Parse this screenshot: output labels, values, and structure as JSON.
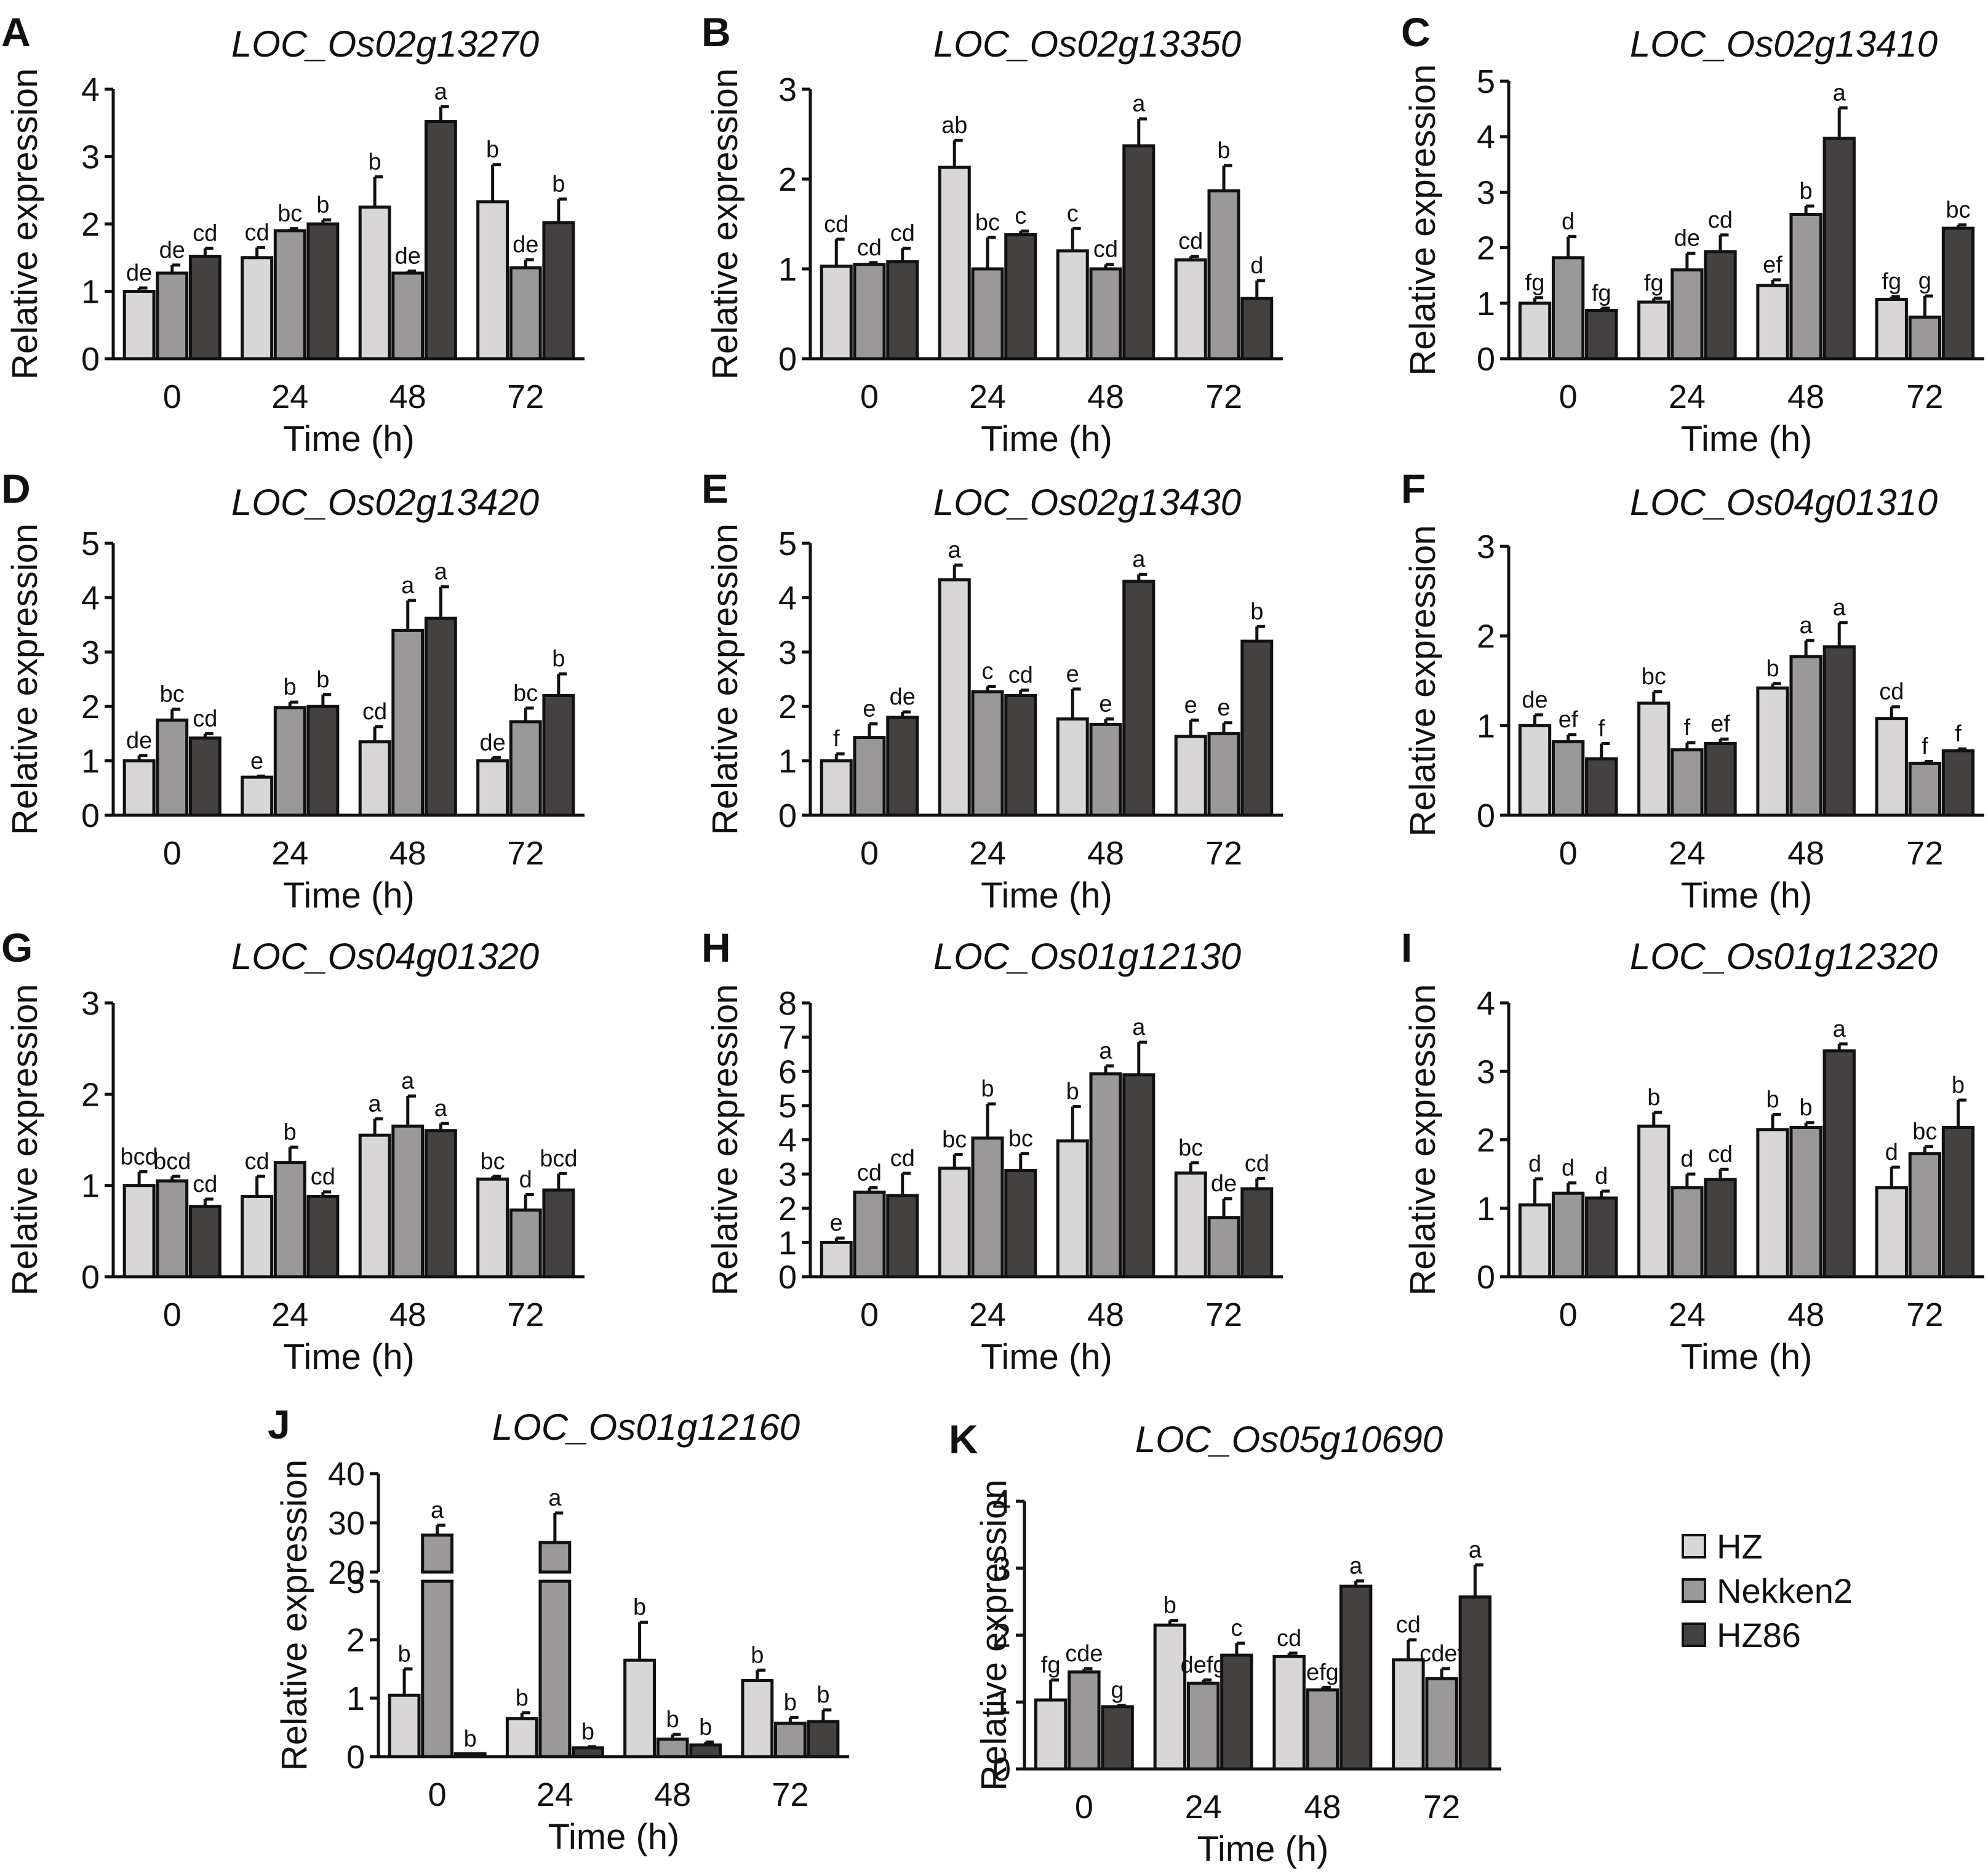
{
  "legend": [
    {
      "name": "HZ",
      "color": "#d9d6d7"
    },
    {
      "name": "Nekken2",
      "color": "#9a9898"
    },
    {
      "name": "HZ86",
      "color": "#454141"
    }
  ],
  "chart_data": [
    {
      "panel": "A",
      "type": "bar",
      "title": "LOC_Os02g13270",
      "xlabel": "Time (h)",
      "ylabel": "Relative expression",
      "categories": [
        "0",
        "24",
        "48",
        "72"
      ],
      "ylim": [
        0,
        4
      ],
      "yticks": [
        0,
        1,
        2,
        3,
        4
      ],
      "series": [
        {
          "name": "HZ",
          "values": [
            1.0,
            1.5,
            2.25,
            2.33
          ],
          "errors": [
            0.05,
            0.15,
            0.45,
            0.55
          ],
          "labels": [
            "de",
            "cd",
            "b",
            "b"
          ]
        },
        {
          "name": "Nekken2",
          "values": [
            1.27,
            1.9,
            1.27,
            1.35
          ],
          "errors": [
            0.12,
            0.03,
            0.03,
            0.12
          ],
          "labels": [
            "de",
            "bc",
            "de",
            "de"
          ]
        },
        {
          "name": "HZ86",
          "values": [
            1.52,
            2.0,
            3.52,
            2.02
          ],
          "errors": [
            0.12,
            0.06,
            0.22,
            0.35
          ],
          "labels": [
            "cd",
            "b",
            "a",
            "b"
          ]
        }
      ]
    },
    {
      "panel": "B",
      "type": "bar",
      "title": "LOC_Os02g13350",
      "xlabel": "Time (h)",
      "ylabel": "Relative expression",
      "categories": [
        "0",
        "24",
        "48",
        "72"
      ],
      "ylim": [
        0,
        3
      ],
      "yticks": [
        0,
        1,
        2,
        3
      ],
      "series": [
        {
          "name": "HZ",
          "values": [
            1.03,
            2.13,
            1.2,
            1.1
          ],
          "errors": [
            0.3,
            0.3,
            0.25,
            0.04
          ],
          "labels": [
            "cd",
            "ab",
            "c",
            "cd"
          ]
        },
        {
          "name": "Nekken2",
          "values": [
            1.05,
            1.0,
            1.0,
            1.87
          ],
          "errors": [
            0.02,
            0.35,
            0.05,
            0.28
          ],
          "labels": [
            "cd",
            "bc",
            "cd",
            "b"
          ]
        },
        {
          "name": "HZ86",
          "values": [
            1.08,
            1.38,
            2.37,
            0.67
          ],
          "errors": [
            0.15,
            0.04,
            0.3,
            0.2
          ],
          "labels": [
            "cd",
            "c",
            "a",
            "d"
          ]
        }
      ]
    },
    {
      "panel": "C",
      "type": "bar",
      "title": "LOC_Os02g13410",
      "xlabel": "Time (h)",
      "ylabel": "Relative expression",
      "categories": [
        "0",
        "24",
        "48",
        "72"
      ],
      "ylim": [
        0,
        5
      ],
      "yticks": [
        0,
        1,
        2,
        3,
        4,
        5
      ],
      "series": [
        {
          "name": "HZ",
          "values": [
            1.0,
            1.02,
            1.32,
            1.07
          ],
          "errors": [
            0.1,
            0.07,
            0.1,
            0.05
          ],
          "labels": [
            "fg",
            "fg",
            "ef",
            "fg"
          ]
        },
        {
          "name": "Nekken2",
          "values": [
            1.82,
            1.6,
            2.6,
            0.75
          ],
          "errors": [
            0.38,
            0.3,
            0.15,
            0.38
          ],
          "labels": [
            "d",
            "de",
            "b",
            "g"
          ]
        },
        {
          "name": "HZ86",
          "values": [
            0.87,
            1.93,
            3.97,
            2.35
          ],
          "errors": [
            0.04,
            0.3,
            0.55,
            0.06
          ],
          "labels": [
            "fg",
            "cd",
            "a",
            "bc"
          ]
        }
      ]
    },
    {
      "panel": "D",
      "type": "bar",
      "title": "LOC_Os02g13420",
      "xlabel": "Time (h)",
      "ylabel": "Relative expression",
      "categories": [
        "0",
        "24",
        "48",
        "72"
      ],
      "ylim": [
        0,
        5
      ],
      "yticks": [
        0,
        1,
        2,
        3,
        4,
        5
      ],
      "series": [
        {
          "name": "HZ",
          "values": [
            1.0,
            0.7,
            1.35,
            1.0
          ],
          "errors": [
            0.1,
            0.02,
            0.28,
            0.06
          ],
          "labels": [
            "de",
            "e",
            "cd",
            "de"
          ]
        },
        {
          "name": "Nekken2",
          "values": [
            1.75,
            1.98,
            3.4,
            1.72
          ],
          "errors": [
            0.2,
            0.1,
            0.55,
            0.25
          ],
          "labels": [
            "bc",
            "b",
            "a",
            "bc"
          ]
        },
        {
          "name": "HZ86",
          "values": [
            1.42,
            2.0,
            3.62,
            2.2
          ],
          "errors": [
            0.08,
            0.22,
            0.58,
            0.4
          ],
          "labels": [
            "cd",
            "b",
            "a",
            "b"
          ]
        }
      ]
    },
    {
      "panel": "E",
      "type": "bar",
      "title": "LOC_Os02g13430",
      "xlabel": "Time (h)",
      "ylabel": "Relative expression",
      "categories": [
        "0",
        "24",
        "48",
        "72"
      ],
      "ylim": [
        0,
        5
      ],
      "yticks": [
        0,
        1,
        2,
        3,
        4,
        5
      ],
      "series": [
        {
          "name": "HZ",
          "values": [
            1.0,
            4.33,
            1.77,
            1.45
          ],
          "errors": [
            0.13,
            0.27,
            0.55,
            0.3
          ],
          "labels": [
            "f",
            "a",
            "e",
            "e"
          ]
        },
        {
          "name": "Nekken2",
          "values": [
            1.43,
            2.27,
            1.67,
            1.5
          ],
          "errors": [
            0.25,
            0.1,
            0.1,
            0.2
          ],
          "labels": [
            "e",
            "c",
            "e",
            "e"
          ]
        },
        {
          "name": "HZ86",
          "values": [
            1.8,
            2.2,
            4.3,
            3.2
          ],
          "errors": [
            0.1,
            0.1,
            0.13,
            0.27
          ],
          "labels": [
            "de",
            "cd",
            "a",
            "b"
          ]
        }
      ]
    },
    {
      "panel": "F",
      "type": "bar",
      "title": "LOC_Os04g01310",
      "xlabel": "Time (h)",
      "ylabel": "Relative expression",
      "categories": [
        "0",
        "24",
        "48",
        "72"
      ],
      "ylim": [
        0,
        3
      ],
      "yticks": [
        0,
        1,
        2,
        3
      ],
      "series": [
        {
          "name": "HZ",
          "values": [
            1.0,
            1.25,
            1.42,
            1.08
          ],
          "errors": [
            0.12,
            0.13,
            0.05,
            0.13
          ],
          "labels": [
            "de",
            "bc",
            "b",
            "cd"
          ]
        },
        {
          "name": "Nekken2",
          "values": [
            0.82,
            0.73,
            1.77,
            0.58
          ],
          "errors": [
            0.08,
            0.08,
            0.18,
            0.02
          ],
          "labels": [
            "ef",
            "f",
            "a",
            "f"
          ]
        },
        {
          "name": "HZ86",
          "values": [
            0.63,
            0.8,
            1.88,
            0.72
          ],
          "errors": [
            0.17,
            0.05,
            0.27,
            0.02
          ],
          "labels": [
            "f",
            "ef",
            "a",
            "f"
          ]
        }
      ]
    },
    {
      "panel": "G",
      "type": "bar",
      "title": "LOC_Os04g01320",
      "xlabel": "Time (h)",
      "ylabel": "Relative expression",
      "categories": [
        "0",
        "24",
        "48",
        "72"
      ],
      "ylim": [
        0,
        3
      ],
      "yticks": [
        0,
        1,
        2,
        3
      ],
      "series": [
        {
          "name": "HZ",
          "values": [
            1.0,
            0.88,
            1.55,
            1.07
          ],
          "errors": [
            0.15,
            0.22,
            0.18,
            0.03
          ],
          "labels": [
            "bcd",
            "cd",
            "a",
            "bc"
          ]
        },
        {
          "name": "Nekken2",
          "values": [
            1.05,
            1.25,
            1.65,
            0.73
          ],
          "errors": [
            0.05,
            0.17,
            0.33,
            0.17
          ],
          "labels": [
            "bcd",
            "b",
            "a",
            "d"
          ]
        },
        {
          "name": "HZ86",
          "values": [
            0.77,
            0.88,
            1.6,
            0.95
          ],
          "errors": [
            0.08,
            0.05,
            0.08,
            0.18
          ],
          "labels": [
            "cd",
            "cd",
            "a",
            "bcd"
          ]
        }
      ]
    },
    {
      "panel": "H",
      "type": "bar",
      "title": "LOC_Os01g12130",
      "xlabel": "Time (h)",
      "ylabel": "Relative expression",
      "categories": [
        "0",
        "24",
        "48",
        "72"
      ],
      "ylim": [
        0,
        8
      ],
      "yticks": [
        0,
        1,
        2,
        3,
        4,
        5,
        6,
        7,
        8
      ],
      "series": [
        {
          "name": "HZ",
          "values": [
            1.0,
            3.17,
            3.97,
            3.03
          ],
          "errors": [
            0.13,
            0.4,
            1.0,
            0.3
          ],
          "labels": [
            "e",
            "bc",
            "b",
            "bc"
          ]
        },
        {
          "name": "Nekken2",
          "values": [
            2.47,
            4.05,
            5.93,
            1.73
          ],
          "errors": [
            0.13,
            1.0,
            0.23,
            0.55
          ],
          "labels": [
            "cd",
            "b",
            "a",
            "de"
          ]
        },
        {
          "name": "HZ86",
          "values": [
            2.37,
            3.1,
            5.9,
            2.57
          ],
          "errors": [
            0.65,
            0.5,
            0.95,
            0.3
          ],
          "labels": [
            "cd",
            "bc",
            "a",
            "cd"
          ]
        }
      ]
    },
    {
      "panel": "I",
      "type": "bar",
      "title": "LOC_Os01g12320",
      "xlabel": "Time (h)",
      "ylabel": "Relative expression",
      "categories": [
        "0",
        "24",
        "48",
        "72"
      ],
      "ylim": [
        0,
        4
      ],
      "yticks": [
        0,
        1,
        2,
        3,
        4
      ],
      "series": [
        {
          "name": "HZ",
          "values": [
            1.05,
            2.2,
            2.15,
            1.3
          ],
          "errors": [
            0.38,
            0.2,
            0.22,
            0.3
          ],
          "labels": [
            "d",
            "b",
            "b",
            "d"
          ]
        },
        {
          "name": "Nekken2",
          "values": [
            1.22,
            1.3,
            2.18,
            1.8
          ],
          "errors": [
            0.15,
            0.2,
            0.07,
            0.1
          ],
          "labels": [
            "d",
            "d",
            "b",
            "bc"
          ]
        },
        {
          "name": "HZ86",
          "values": [
            1.15,
            1.42,
            3.3,
            2.18
          ],
          "errors": [
            0.1,
            0.15,
            0.1,
            0.4
          ],
          "labels": [
            "d",
            "cd",
            "a",
            "b"
          ]
        }
      ]
    },
    {
      "panel": "J",
      "type": "bar",
      "title": "LOC_Os01g12160",
      "xlabel": "Time (h)",
      "ylabel": "Relative expression",
      "categories": [
        "0",
        "24",
        "48",
        "72"
      ],
      "ylim": [
        0,
        40
      ],
      "yticks": [
        0,
        1,
        2,
        3,
        20,
        30,
        40
      ],
      "axis_break": [
        3,
        20
      ],
      "series": [
        {
          "name": "HZ",
          "values": [
            1.05,
            0.65,
            1.65,
            1.3
          ],
          "errors": [
            0.45,
            0.1,
            0.65,
            0.18
          ],
          "labels": [
            "b",
            "b",
            "b",
            "b"
          ]
        },
        {
          "name": "Nekken2",
          "values": [
            27.5,
            26.0,
            0.3,
            0.57
          ],
          "errors": [
            2.0,
            6.0,
            0.08,
            0.1
          ],
          "labels": [
            "a",
            "a",
            "b",
            "b"
          ]
        },
        {
          "name": "HZ86",
          "values": [
            0.05,
            0.15,
            0.2,
            0.6
          ],
          "errors": [
            0.0,
            0.02,
            0.05,
            0.2
          ],
          "labels": [
            "b",
            "b",
            "b",
            "b"
          ]
        }
      ]
    },
    {
      "panel": "K",
      "type": "bar",
      "title": "LOC_Os05g10690",
      "xlabel": "Time (h)",
      "ylabel": "Relative expression",
      "categories": [
        "0",
        "24",
        "48",
        "72"
      ],
      "ylim": [
        0,
        4
      ],
      "yticks": [
        0,
        1,
        2,
        3,
        4
      ],
      "series": [
        {
          "name": "HZ",
          "values": [
            1.03,
            2.15,
            1.68,
            1.63
          ],
          "errors": [
            0.3,
            0.07,
            0.05,
            0.3
          ],
          "labels": [
            "fg",
            "b",
            "cd",
            "cd"
          ]
        },
        {
          "name": "Nekken2",
          "values": [
            1.45,
            1.28,
            1.18,
            1.35
          ],
          "errors": [
            0.05,
            0.05,
            0.04,
            0.15
          ],
          "labels": [
            "cde",
            "defg",
            "efg",
            "cdef"
          ]
        },
        {
          "name": "HZ86",
          "values": [
            0.93,
            1.7,
            2.73,
            2.57
          ],
          "errors": [
            0.02,
            0.18,
            0.08,
            0.48
          ],
          "labels": [
            "g",
            "c",
            "a",
            "a"
          ]
        }
      ]
    }
  ]
}
